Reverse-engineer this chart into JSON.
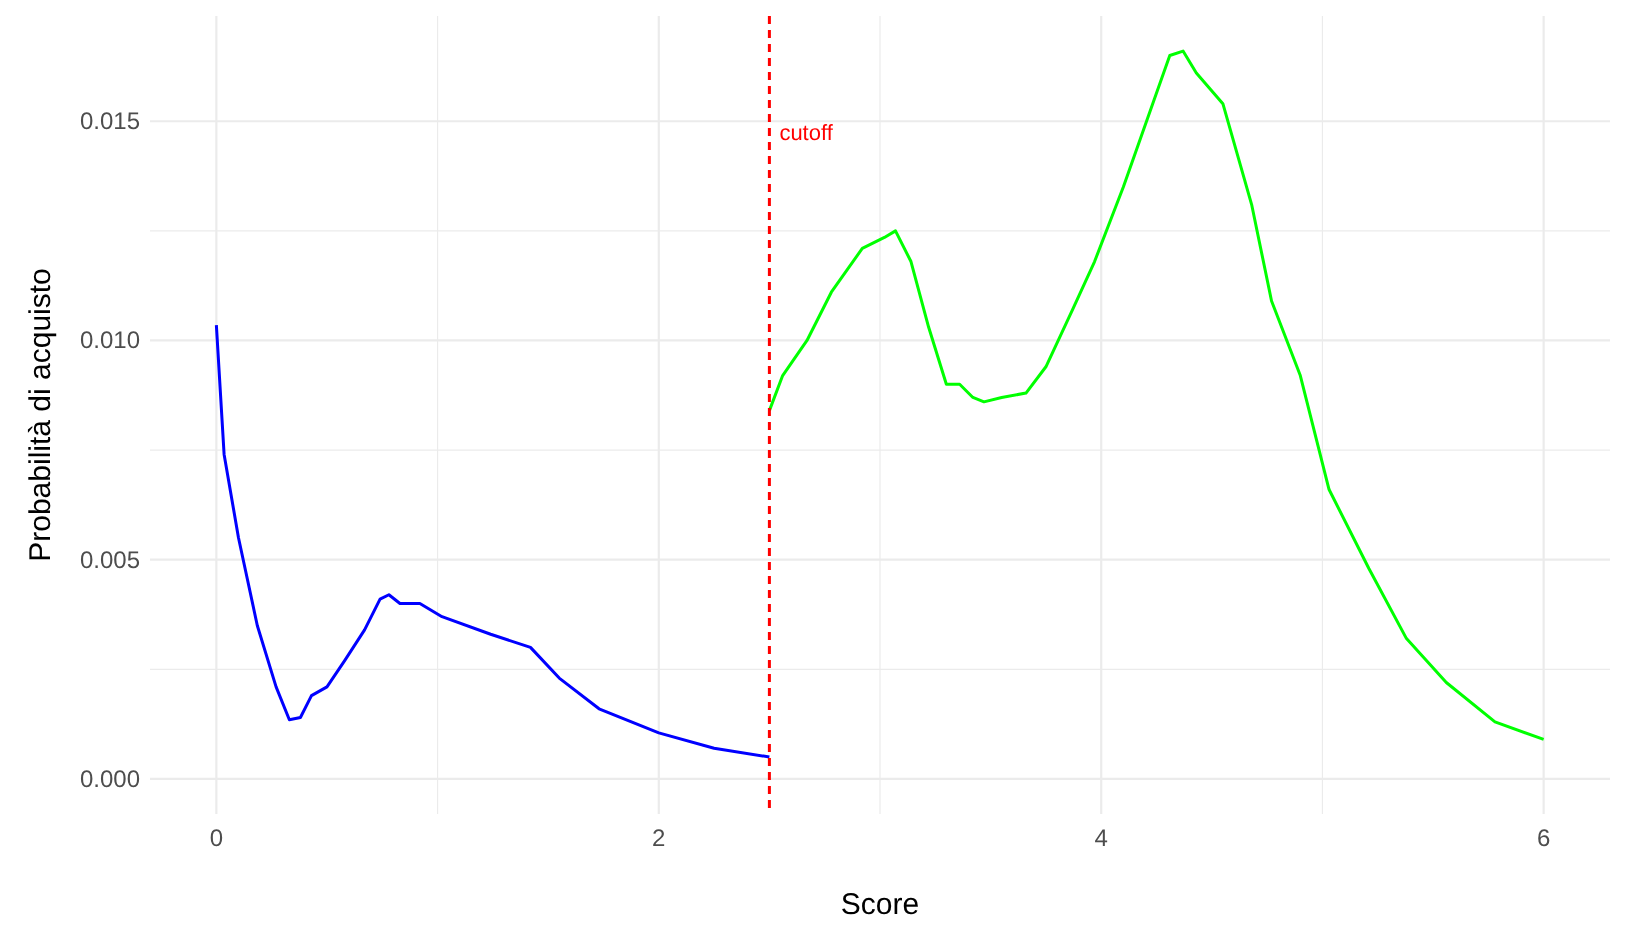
{
  "chart_data": {
    "type": "line",
    "xlabel": "Score",
    "ylabel": "Probabilità di acquisto",
    "xlim": [
      -0.3,
      6.3
    ],
    "ylim": [
      -0.0008,
      0.0174
    ],
    "xticks": [
      0,
      {
        "value": 1,
        "label": null
      },
      2,
      {
        "value": 3,
        "label": null
      },
      4,
      {
        "value": 5,
        "label": null
      },
      6
    ],
    "yticks": [
      {
        "value": 0,
        "label": "0.000"
      },
      {
        "value": 0.0025,
        "label": null
      },
      {
        "value": 0.005,
        "label": "0.005"
      },
      {
        "value": 0.0075,
        "label": null
      },
      {
        "value": 0.01,
        "label": "0.010"
      },
      {
        "value": 0.0125,
        "label": null
      },
      {
        "value": 0.015,
        "label": "0.015"
      }
    ],
    "grid": true,
    "ref_lines": [
      {
        "axis": "x",
        "value": 2.5,
        "label": "cutoff",
        "color": "#ff0000",
        "line_style": "dashed"
      }
    ],
    "series": [
      {
        "color": "#0000ff",
        "x": [
          0,
          0.035,
          0.1,
          0.185,
          0.27,
          0.33,
          0.38,
          0.43,
          0.5,
          0.58,
          0.67,
          0.74,
          0.78,
          0.83,
          0.92,
          1.02,
          1.24,
          1.42,
          1.55,
          1.73,
          2.0,
          2.25,
          2.5
        ],
        "values": [
          0.01035,
          0.0074,
          0.0055,
          0.0035,
          0.0021,
          0.00135,
          0.0014,
          0.0019,
          0.0021,
          0.0027,
          0.0034,
          0.0041,
          0.0042,
          0.004,
          0.004,
          0.0037,
          0.0033,
          0.003,
          0.0023,
          0.0016,
          0.00105,
          0.0007,
          0.0005
        ]
      },
      {
        "color": "#00ff00",
        "x": [
          2.5,
          2.56,
          2.67,
          2.78,
          2.92,
          3.02,
          3.07,
          3.14,
          3.22,
          3.3,
          3.36,
          3.42,
          3.47,
          3.55,
          3.66,
          3.75,
          3.87,
          3.97,
          4.1,
          4.24,
          4.31,
          4.37,
          4.43,
          4.55,
          4.68,
          4.77,
          4.9,
          5.03,
          5.21,
          5.38,
          5.56,
          5.78,
          6.0
        ],
        "values": [
          0.0084,
          0.0092,
          0.01,
          0.0111,
          0.0121,
          0.01235,
          0.0125,
          0.0118,
          0.0103,
          0.009,
          0.009,
          0.0087,
          0.0086,
          0.0087,
          0.0088,
          0.0094,
          0.0107,
          0.0118,
          0.0135,
          0.0155,
          0.0165,
          0.0166,
          0.0161,
          0.0154,
          0.0131,
          0.0109,
          0.0092,
          0.0066,
          0.0048,
          0.0032,
          0.0022,
          0.0013,
          0.0009
        ]
      }
    ]
  }
}
